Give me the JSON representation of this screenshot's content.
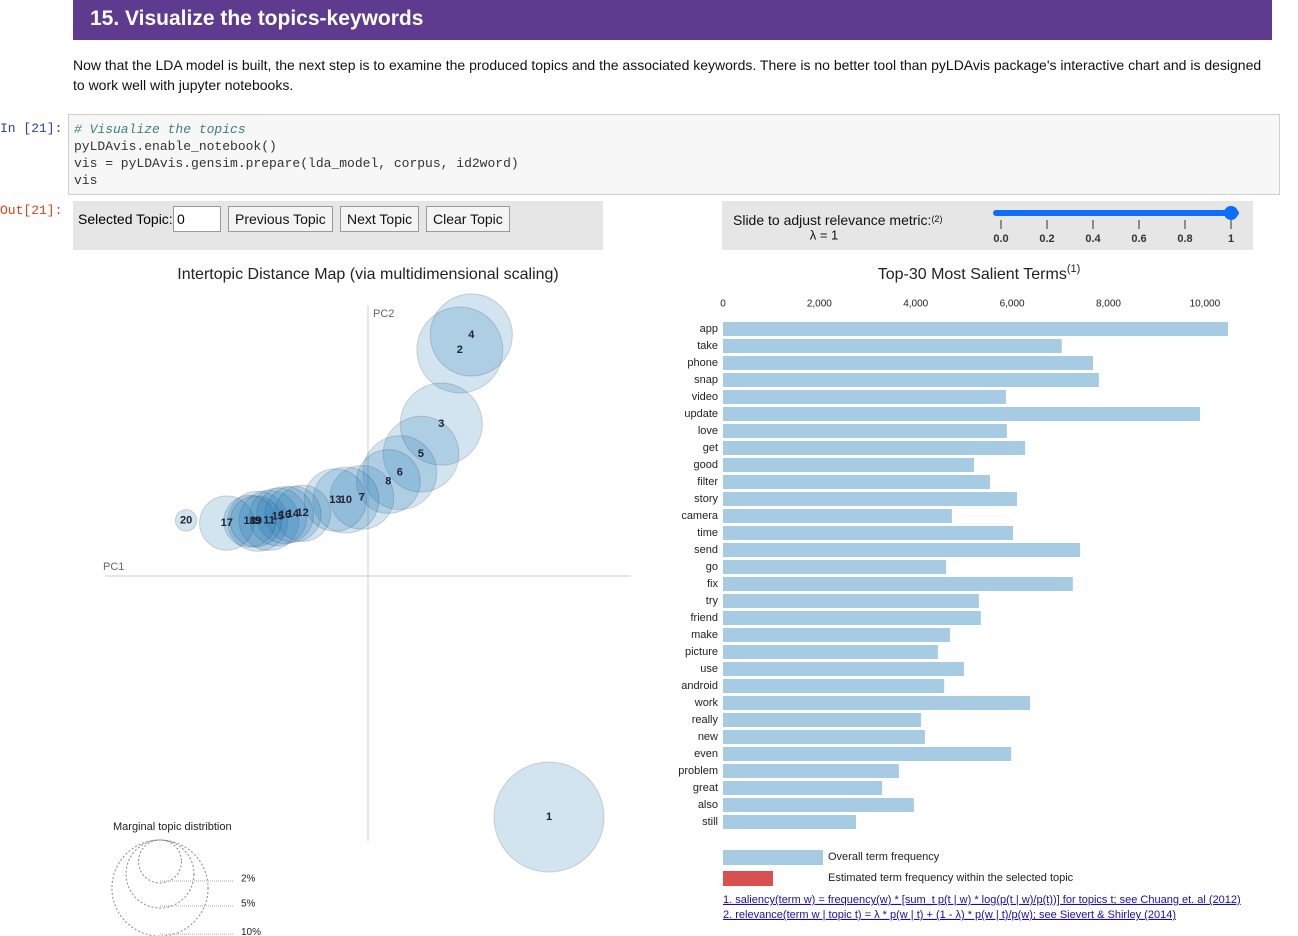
{
  "header": {
    "title": "15. Visualize the topics-keywords"
  },
  "intro": "Now that the LDA model is built, the next step is to examine the produced topics and the associated keywords. There is no better tool than pyLDAvis package's interactive chart and is designed to work well with jupyter notebooks.",
  "code_cell": {
    "prompt": "In [21]:",
    "lines": [
      "# Visualize the topics",
      "pyLDAvis.enable_notebook()",
      "vis = pyLDAvis.gensim.prepare(lda_model, corpus, id2word)",
      "vis"
    ]
  },
  "output": {
    "prompt": "Out[21]:"
  },
  "controls": {
    "selected_label": "Selected Topic:",
    "selected_value": "0",
    "buttons": [
      "Previous Topic",
      "Next Topic",
      "Clear Topic"
    ],
    "slider": {
      "label": "Slide to adjust relevance metric:",
      "note": "(2)",
      "lambda_text": "λ = 1",
      "lambda": 1,
      "xlim": [
        0,
        1
      ],
      "xticks": [
        {
          "value": 0,
          "label": "0.0"
        },
        0.2,
        0.4,
        0.6,
        0.8,
        1
      ]
    }
  },
  "chart_data": [
    {
      "type": "bubble",
      "title": "Intertopic Distance Map (via multidimensional scaling)",
      "x_label": "PC1",
      "y_label": "PC2",
      "labels": [
        "1",
        "2",
        "3",
        "4",
        "5",
        "6",
        "7",
        "8",
        "9",
        "10",
        "11",
        "12",
        "13",
        "14",
        "15",
        "16",
        "17",
        "18",
        "19",
        "20"
      ],
      "x": [
        0.205,
        0.104,
        0.083,
        0.117,
        0.06,
        0.036,
        -0.007,
        0.023,
        -0.125,
        -0.025,
        -0.112,
        -0.074,
        -0.037,
        -0.085,
        -0.102,
        -0.094,
        -0.16,
        -0.134,
        -0.127,
        -0.206
      ],
      "y": [
        -0.273,
        0.256,
        0.172,
        0.273,
        0.138,
        0.117,
        0.089,
        0.107,
        0.062,
        0.086,
        0.063,
        0.071,
        0.086,
        0.07,
        0.067,
        0.069,
        0.06,
        0.062,
        0.062,
        0.063
      ],
      "size": [
        13.1,
        8.0,
        7.3,
        7.3,
        6.2,
        5.9,
        4.4,
        4.4,
        3.9,
        4.7,
        3.9,
        3.4,
        4.2,
        3.4,
        3.6,
        3.5,
        3.2,
        2.9,
        2.8,
        0.5
      ],
      "xlim": [
        -0.3,
        0.3
      ],
      "ylim": [
        -0.3,
        0.3
      ],
      "color": "#1f77b4",
      "size_legend": {
        "title": "Marginal topic distribtion",
        "ticks": [
          {
            "value": 2,
            "label": "2%"
          },
          {
            "value": 5,
            "label": "5%"
          },
          {
            "value": 10,
            "label": "10%"
          }
        ]
      }
    },
    {
      "type": "hbar",
      "title": "Top-30 Most Salient Terms",
      "title_note": "(1)",
      "categories": [
        "app",
        "take",
        "phone",
        "snap",
        "video",
        "update",
        "love",
        "get",
        "good",
        "filter",
        "story",
        "camera",
        "time",
        "send",
        "go",
        "fix",
        "try",
        "friend",
        "make",
        "picture",
        "use",
        "android",
        "work",
        "really",
        "new",
        "even",
        "problem",
        "great",
        "also",
        "still"
      ],
      "series": [
        {
          "name": "Overall term frequency",
          "color": "#a6cbe3",
          "values": [
            10480,
            7030,
            7680,
            7800,
            5870,
            9900,
            5890,
            6270,
            5210,
            5540,
            6100,
            4750,
            6020,
            7410,
            4630,
            7260,
            5310,
            5350,
            4710,
            4460,
            5000,
            4590,
            6370,
            4110,
            4190,
            5980,
            3650,
            3300,
            3960,
            2760
          ]
        },
        {
          "name": "Estimated term frequency within the selected topic",
          "color": "#d95050",
          "values": [
            null,
            null,
            null,
            null,
            null,
            null,
            null,
            null,
            null,
            null,
            null,
            null,
            null,
            null,
            null,
            null,
            null,
            null,
            null,
            null,
            null,
            null,
            null,
            null,
            null,
            null,
            null,
            null,
            null,
            null
          ]
        }
      ],
      "xlim": [
        0,
        10480
      ],
      "xticks": [
        0,
        {
          "value": 2000,
          "label": "2,000"
        },
        {
          "value": 4000,
          "label": "4,000"
        },
        {
          "value": 6000,
          "label": "6,000"
        },
        {
          "value": 8000,
          "label": "8,000"
        },
        {
          "value": 10000,
          "label": "10,000"
        }
      ],
      "footnotes": [
        "1. saliency(term w) = frequency(w) * [sum_t p(t | w) * log(p(t | w)/p(t))] for topics t; see Chuang et. al (2012)",
        "2. relevance(term w | topic t) = λ * p(w | t) + (1 - λ) * p(w | t)/p(w); see Sievert & Shirley (2014)"
      ]
    }
  ]
}
